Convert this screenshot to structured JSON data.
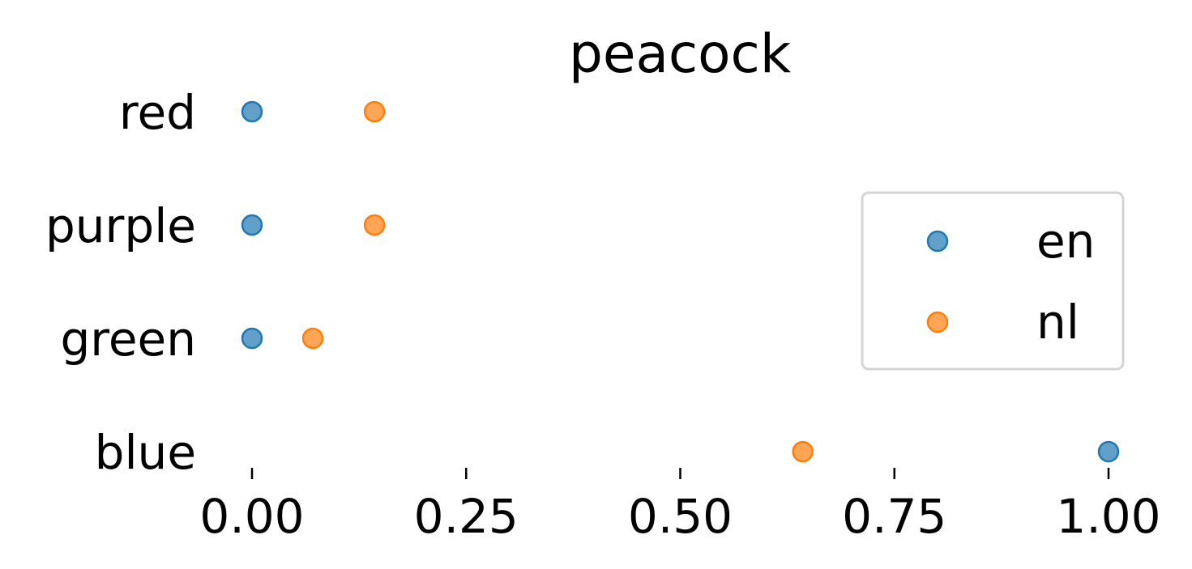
{
  "chart_data": {
    "type": "scatter",
    "title": "peacock",
    "xlabel": "",
    "ylabel": "",
    "categories": [
      "red",
      "purple",
      "green",
      "blue"
    ],
    "x_ticks": [
      "0.00",
      "0.25",
      "0.50",
      "0.75",
      "1.00"
    ],
    "x_tick_values": [
      0.0,
      0.25,
      0.5,
      0.75,
      1.0
    ],
    "xlim": [
      0.0,
      1.0
    ],
    "grid": false,
    "legend_position": "right",
    "series": [
      {
        "name": "en",
        "color": "#1f77b4",
        "values": [
          0.0,
          0.0,
          0.0,
          1.0
        ]
      },
      {
        "name": "nl",
        "color": "#ff7f0e",
        "values": [
          0.143,
          0.143,
          0.071,
          0.643
        ]
      }
    ]
  }
}
